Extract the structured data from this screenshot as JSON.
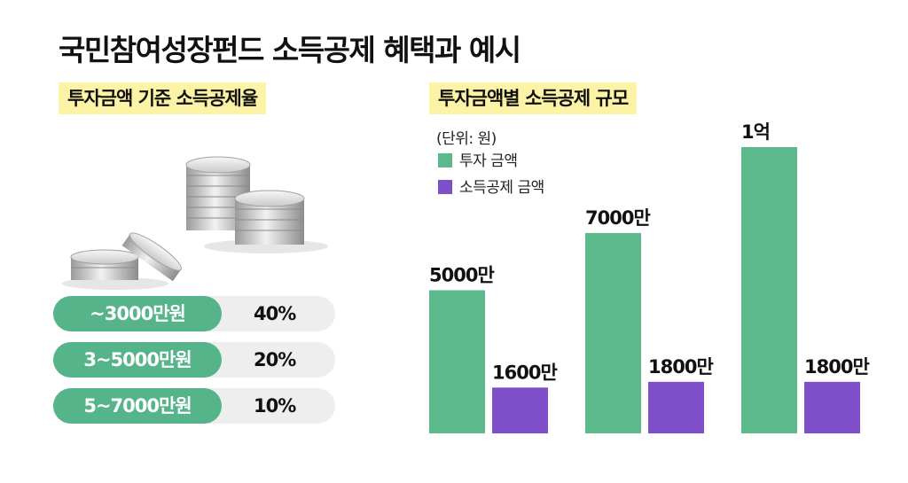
{
  "title": "국민참여성장펀드 소득공제 혜택과 예시",
  "left": {
    "label": "투자금액 기준 소득공제율",
    "rows": [
      {
        "range": "~3000만원",
        "rate": "40%"
      },
      {
        "range": "3~5000만원",
        "rate": "20%"
      },
      {
        "range": "5~7000만원",
        "rate": "10%"
      }
    ]
  },
  "right": {
    "label": "투자금액별 소득공제 규모",
    "unit": "(단위: 원)",
    "legend": [
      "투자 금액",
      "소득공제 금액"
    ]
  },
  "colors": {
    "invest": "#5bb98c",
    "deduction": "#7e4fc9",
    "highlight": "#fdf3a6"
  },
  "chart_data": {
    "type": "bar",
    "categories": [
      "5000만",
      "7000만",
      "1억"
    ],
    "series": [
      {
        "name": "투자 금액",
        "values": [
          5000,
          7000,
          10000
        ],
        "labels": [
          "5000만",
          "7000만",
          "1억"
        ]
      },
      {
        "name": "소득공제 금액",
        "values": [
          1600,
          1800,
          1800
        ],
        "labels": [
          "1600만",
          "1800만",
          "1800만"
        ]
      }
    ],
    "unit": "(단위: 원)"
  }
}
